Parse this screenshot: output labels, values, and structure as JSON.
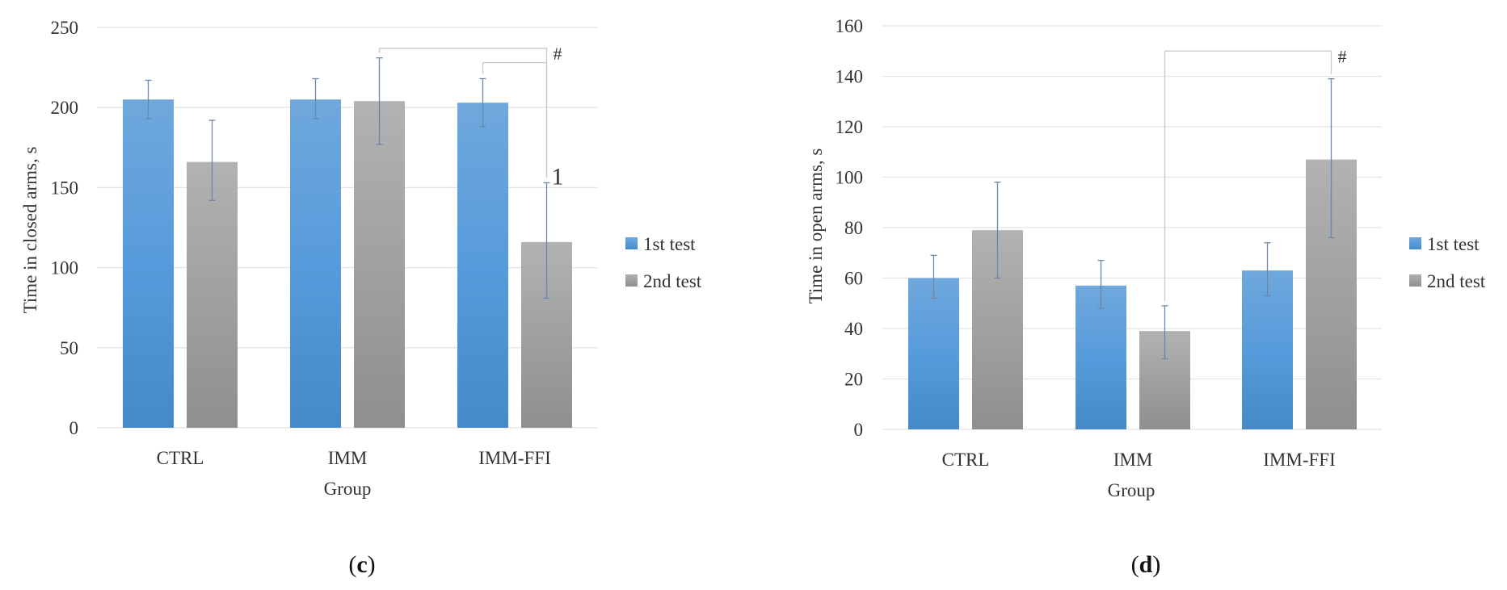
{
  "colors": {
    "series1": "#5b9bd5",
    "series2": "#a5a5a5",
    "grid": "#e3e3e3",
    "error": "#6d87a8",
    "bracket": "#c9c9c9"
  },
  "panels": [
    {
      "label_prefix": "(",
      "label_letter": "c",
      "label_suffix": ")"
    },
    {
      "label_prefix": "(",
      "label_letter": "d",
      "label_suffix": ")"
    }
  ],
  "chart_data": [
    {
      "type": "bar",
      "categories": [
        "CTRL",
        "IMM",
        "IMM-FFI"
      ],
      "series": [
        {
          "name": "1st test",
          "values": [
            205,
            205,
            203
          ],
          "err_low": [
            193,
            193,
            188
          ],
          "err_high": [
            217,
            218,
            218
          ]
        },
        {
          "name": "2nd test",
          "values": [
            166,
            204,
            116
          ],
          "err_low": [
            142,
            177,
            81
          ],
          "err_high": [
            192,
            231,
            153
          ]
        }
      ],
      "xlabel": "Group",
      "ylabel": "Time in closed arms, s",
      "ylim": [
        0,
        250
      ],
      "yticks": [
        0,
        50,
        100,
        150,
        200,
        250
      ],
      "grid": true,
      "legend": "right",
      "annotations": [
        {
          "text": "#",
          "from": [
            1,
            1
          ],
          "to": [
            2,
            1
          ],
          "y": 237,
          "style": "small"
        },
        {
          "text": "#",
          "from": [
            2,
            0
          ],
          "to": [
            2,
            1
          ],
          "y": 228,
          "style": "none"
        },
        {
          "text": "1",
          "bar": [
            2,
            1
          ],
          "y": 157,
          "style": "big"
        }
      ]
    },
    {
      "type": "bar",
      "categories": [
        "CTRL",
        "IMM",
        "IMM-FFI"
      ],
      "series": [
        {
          "name": "1st test",
          "values": [
            60,
            57,
            63
          ],
          "err_low": [
            52,
            48,
            53
          ],
          "err_high": [
            69,
            67,
            74
          ]
        },
        {
          "name": "2nd test",
          "values": [
            79,
            39,
            107
          ],
          "err_low": [
            60,
            28,
            76
          ],
          "err_high": [
            98,
            49,
            139
          ]
        }
      ],
      "xlabel": "Group",
      "ylabel": "Time in open arms, s",
      "ylim": [
        0,
        160
      ],
      "yticks": [
        0,
        20,
        40,
        60,
        80,
        100,
        120,
        140,
        160
      ],
      "grid": true,
      "legend": "right",
      "annotations": [
        {
          "text": "#",
          "from": [
            1,
            1
          ],
          "to": [
            2,
            1
          ],
          "y": 150,
          "style": "small"
        }
      ]
    }
  ]
}
